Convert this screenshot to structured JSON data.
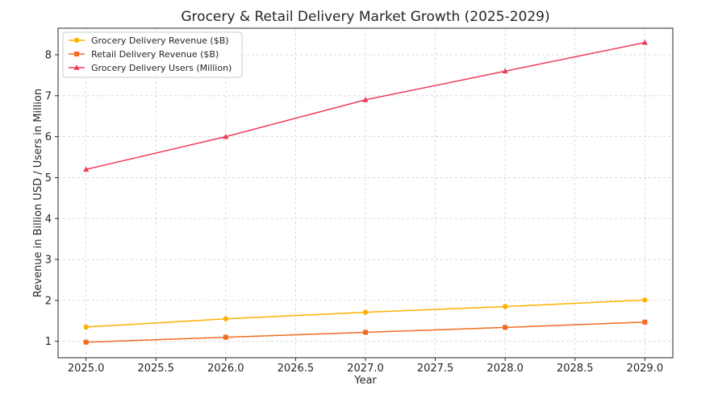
{
  "chart_data": {
    "type": "line",
    "title": "Grocery & Retail Delivery Market Growth (2025-2029)",
    "xlabel": "Year",
    "ylabel": "Revenue in Billion USD / Users in Million",
    "x": [
      2025,
      2026,
      2027,
      2028,
      2029
    ],
    "xticks": [
      "2025.0",
      "2025.5",
      "2026.0",
      "2026.5",
      "2027.0",
      "2027.5",
      "2028.0",
      "2028.5",
      "2029.0"
    ],
    "xtick_values": [
      2025.0,
      2025.5,
      2026.0,
      2026.5,
      2027.0,
      2027.5,
      2028.0,
      2028.5,
      2029.0
    ],
    "yticks": [
      "1",
      "2",
      "3",
      "4",
      "5",
      "6",
      "7",
      "8"
    ],
    "ytick_values": [
      1,
      2,
      3,
      4,
      5,
      6,
      7,
      8
    ],
    "xlim": [
      2024.8,
      2029.2
    ],
    "ylim": [
      0.6,
      8.65
    ],
    "grid": true,
    "legend_position": "top-left",
    "series": [
      {
        "name": "Grocery Delivery Revenue ($B)",
        "values": [
          1.35,
          1.55,
          1.71,
          1.85,
          2.01
        ],
        "color": "#FFB000",
        "marker": "circle"
      },
      {
        "name": "Retail Delivery Revenue ($B)",
        "values": [
          0.98,
          1.1,
          1.22,
          1.34,
          1.47
        ],
        "color": "#F26B21",
        "marker": "square"
      },
      {
        "name": "Grocery Delivery Users (Million)",
        "values": [
          5.2,
          6.0,
          6.9,
          7.6,
          8.3
        ],
        "color": "#EE3A5B",
        "marker": "triangle"
      }
    ]
  }
}
